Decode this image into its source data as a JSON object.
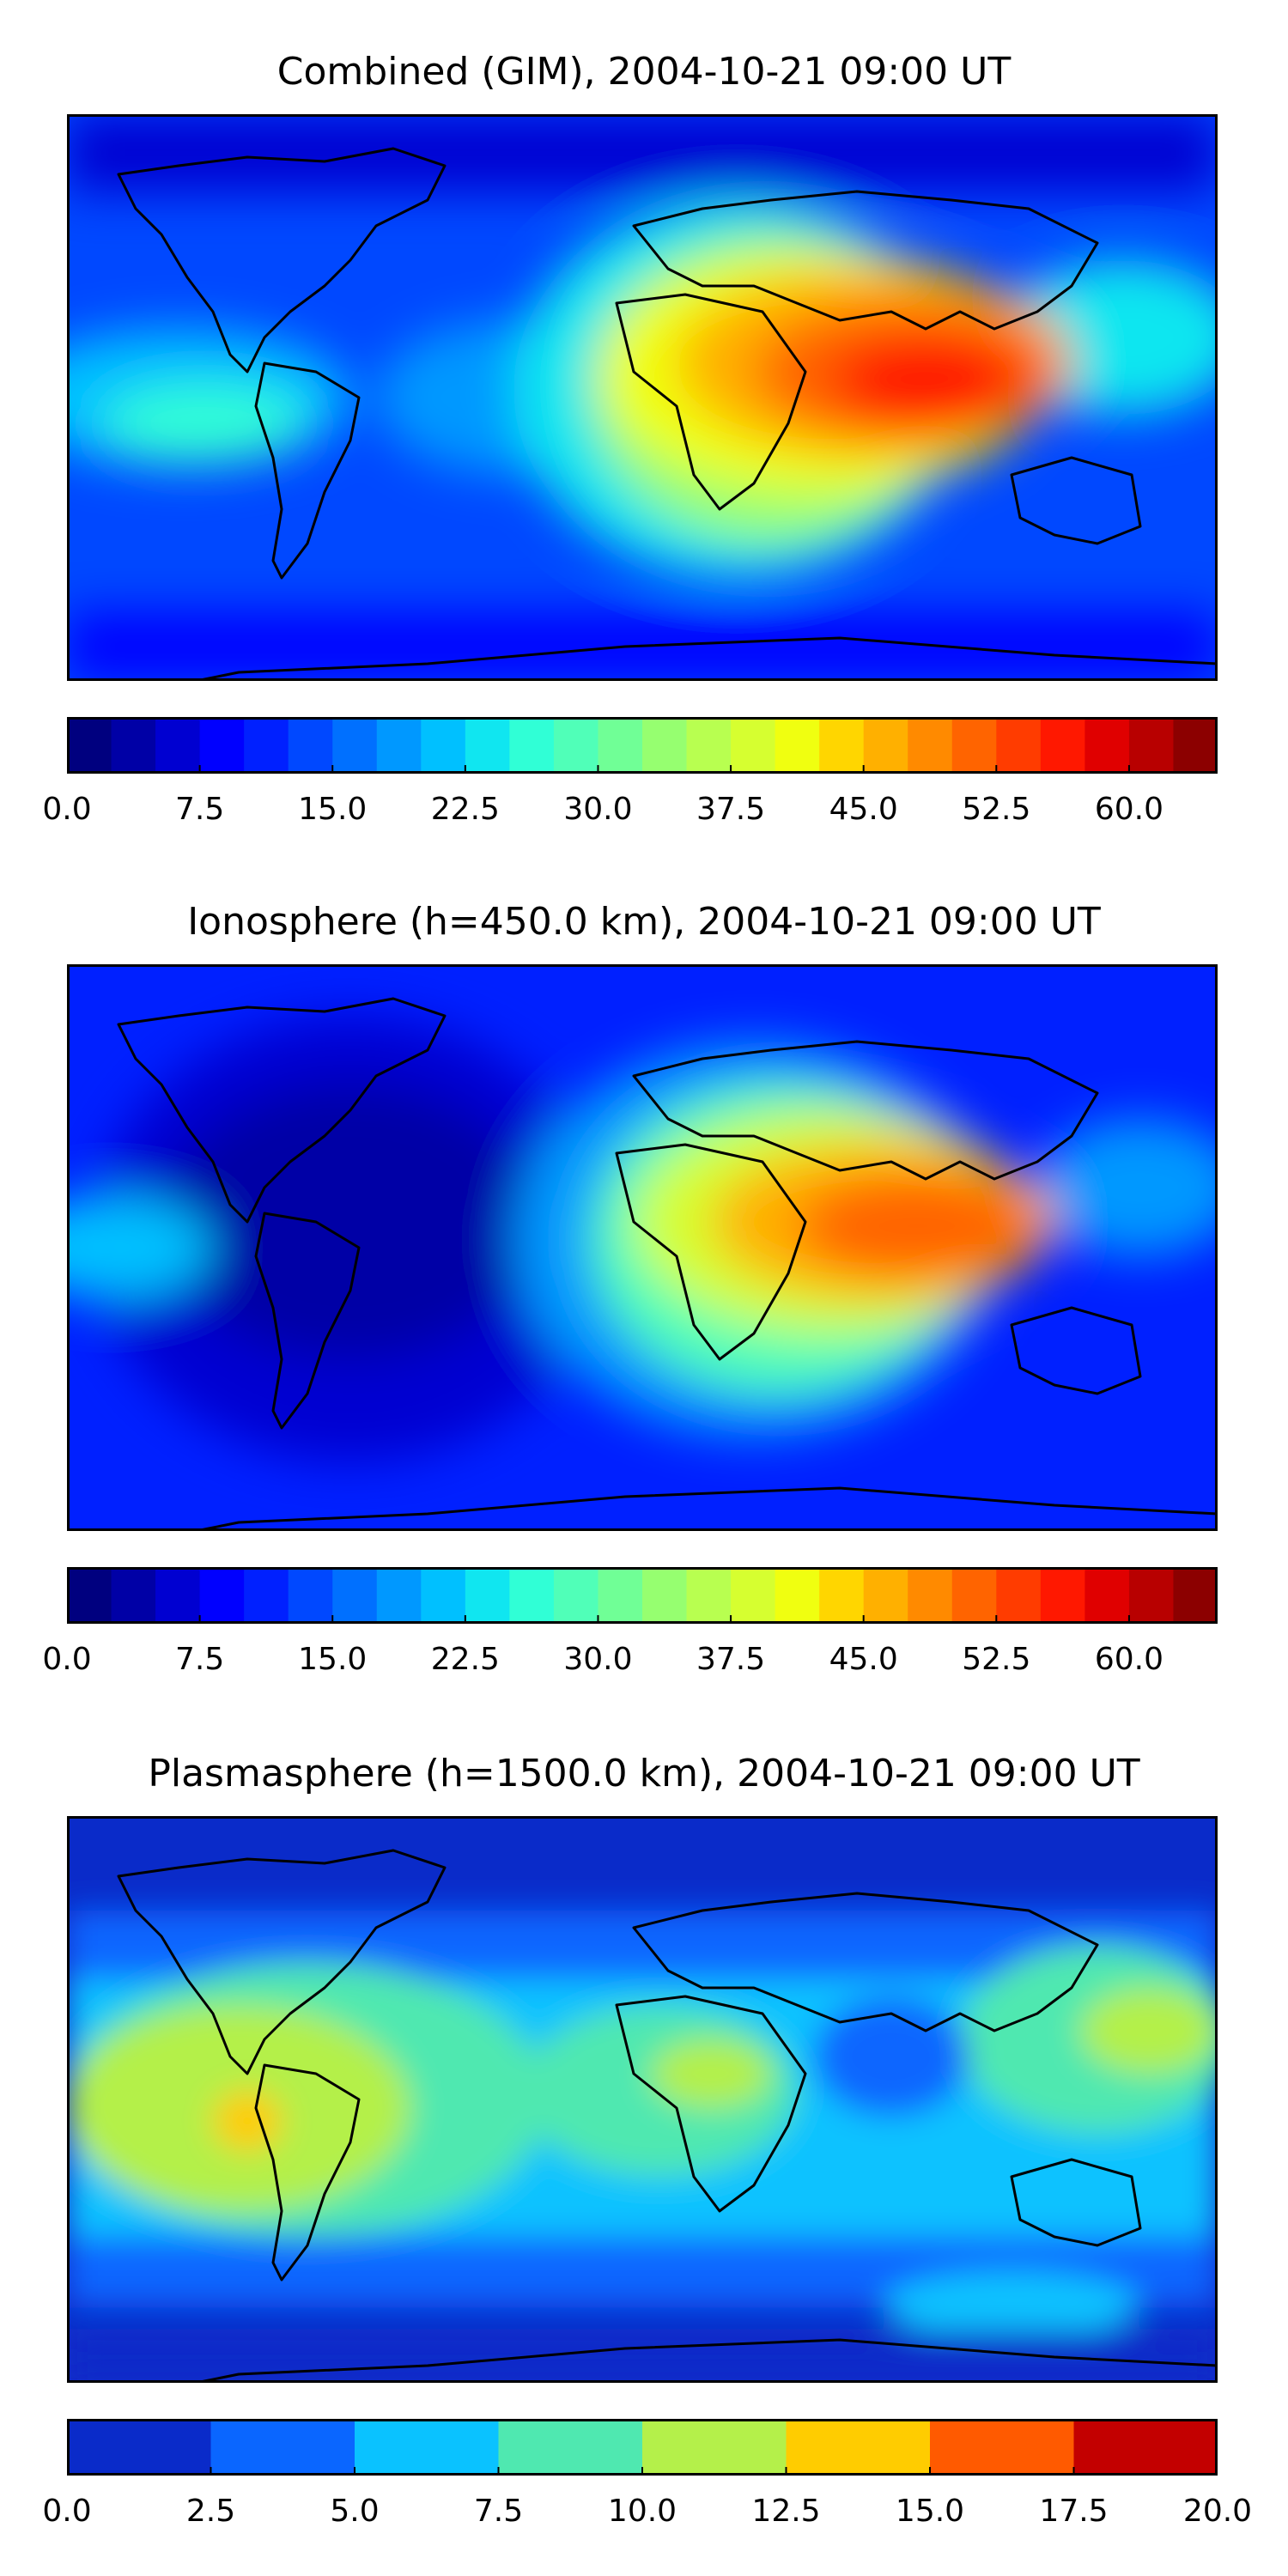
{
  "panels": [
    {
      "title": "Combined (GIM), 2004-10-21 09:00 UT",
      "colorbar": {
        "ticks": [
          "0.0",
          "7.5",
          "15.0",
          "22.5",
          "30.0",
          "37.5",
          "45.0",
          "52.5",
          "60.0"
        ],
        "min": 0,
        "max": 65,
        "step": 2.5
      },
      "chart_data": {
        "type": "heatmap",
        "title": "Combined (GIM), 2004-10-21 09:00 UT",
        "description_regions": [
          {
            "name": "south-asia-indian-ocean-peak",
            "lon": 80,
            "lat": 10,
            "value": 57
          },
          {
            "name": "indonesia",
            "lon": 115,
            "lat": 0,
            "value": 50
          },
          {
            "name": "africa",
            "lon": 20,
            "lat": 5,
            "value": 40
          },
          {
            "name": "atlantic",
            "lon": -30,
            "lat": 0,
            "value": 27
          },
          {
            "name": "west-pacific",
            "lon": -170,
            "lat": 0,
            "value": 22
          },
          {
            "name": "polar",
            "lon": 0,
            "lat": -80,
            "value": 8
          }
        ],
        "colorbar_range": [
          0,
          65
        ]
      }
    },
    {
      "title": "Ionosphere  (h=450.0 km), 2004-10-21 09:00 UT",
      "colorbar": {
        "ticks": [
          "0.0",
          "7.5",
          "15.0",
          "22.5",
          "30.0",
          "37.5",
          "45.0",
          "52.5",
          "60.0"
        ],
        "min": 0,
        "max": 65,
        "step": 2.5
      },
      "chart_data": {
        "type": "heatmap",
        "title": "Ionosphere  (h=450.0 km), 2004-10-21 09:00 UT",
        "description_regions": [
          {
            "name": "south-asia-indian-ocean-peak",
            "lon": 80,
            "lat": 5,
            "value": 50
          },
          {
            "name": "africa",
            "lon": 25,
            "lat": 5,
            "value": 35
          },
          {
            "name": "americas",
            "lon": -70,
            "lat": 0,
            "value": 6
          },
          {
            "name": "west-pacific",
            "lon": -170,
            "lat": 0,
            "value": 18
          }
        ],
        "colorbar_range": [
          0,
          65
        ]
      }
    },
    {
      "title": "Plasmasphere (h=1500.0 km), 2004-10-21 09:00 UT",
      "colorbar": {
        "ticks": [
          "0.0",
          "2.5",
          "5.0",
          "7.5",
          "10.0",
          "12.5",
          "15.0",
          "17.5",
          "20.0"
        ],
        "min": 0,
        "max": 20,
        "step": 2.5
      },
      "chart_data": {
        "type": "heatmap",
        "title": "Plasmasphere (h=1500.0 km), 2004-10-21 09:00 UT",
        "description_regions": [
          {
            "name": "east-pacific-peak",
            "lon": -130,
            "lat": -5,
            "value": 13
          },
          {
            "name": "africa-local-max",
            "lon": 25,
            "lat": 5,
            "value": 11
          },
          {
            "name": "west-pacific",
            "lon": 160,
            "lat": 15,
            "value": 11
          },
          {
            "name": "indian-ocean-low",
            "lon": 80,
            "lat": 10,
            "value": 4
          },
          {
            "name": "north-polar",
            "lon": 0,
            "lat": 75,
            "value": 2
          }
        ],
        "colorbar_range": [
          0,
          20
        ]
      }
    }
  ],
  "colors": {
    "jet_levels_26": [
      "#00007f",
      "#0000a6",
      "#0000d1",
      "#0000ff",
      "#0020ff",
      "#0048ff",
      "#0070ff",
      "#0098ff",
      "#00c0ff",
      "#10e6f0",
      "#30ffd6",
      "#50ffb8",
      "#70ff96",
      "#96ff70",
      "#b8ff50",
      "#d6ff30",
      "#f0ff10",
      "#ffd600",
      "#ffb000",
      "#ff8a00",
      "#ff6400",
      "#ff3c00",
      "#ff1800",
      "#e00000",
      "#b80000",
      "#8c0000"
    ],
    "plasma_levels_8": [
      "#0a2bc9",
      "#0a66ff",
      "#0ac2ff",
      "#4fe8b0",
      "#b4f04a",
      "#ffcc00",
      "#ff5a00",
      "#c30000"
    ]
  }
}
